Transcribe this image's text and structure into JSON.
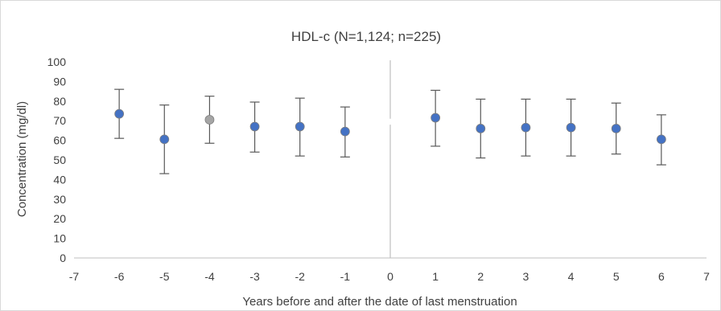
{
  "chart_data": {
    "type": "scatter",
    "title": "HDL-c (N=1,124; n=225)",
    "xlabel": "Years before and after the date of last menstruation",
    "ylabel": "Concentration (mg/dl)",
    "xlim": [
      -7,
      7
    ],
    "ylim": [
      0,
      100
    ],
    "xticks": [
      -7,
      -6,
      -5,
      -4,
      -3,
      -2,
      -1,
      0,
      1,
      2,
      3,
      4,
      5,
      6,
      7
    ],
    "yticks": [
      0,
      10,
      20,
      30,
      40,
      50,
      60,
      70,
      80,
      90,
      100
    ],
    "grid": false,
    "legend": "none",
    "reference_line": {
      "x": 0,
      "color": "#bfbfbf"
    },
    "marker_color": "#4472c4",
    "highlight_color": "#a5a5a5",
    "errorbar_color": "#595959",
    "points": [
      {
        "x": -6,
        "y": 73.5,
        "lower": 61,
        "upper": 86
      },
      {
        "x": -5,
        "y": 60.5,
        "lower": 43,
        "upper": 78
      },
      {
        "x": -4,
        "y": 70.5,
        "lower": 58.5,
        "upper": 82.5,
        "highlight": true
      },
      {
        "x": -3,
        "y": 67,
        "lower": 54,
        "upper": 79.5
      },
      {
        "x": -2,
        "y": 67,
        "lower": 52,
        "upper": 81.5
      },
      {
        "x": -1,
        "y": 64.5,
        "lower": 51.5,
        "upper": 77
      },
      {
        "x": 1,
        "y": 71.5,
        "lower": 57,
        "upper": 85.5
      },
      {
        "x": 2,
        "y": 66,
        "lower": 51,
        "upper": 81
      },
      {
        "x": 3,
        "y": 66.5,
        "lower": 52,
        "upper": 81
      },
      {
        "x": 4,
        "y": 66.5,
        "lower": 52,
        "upper": 81
      },
      {
        "x": 5,
        "y": 66,
        "lower": 53,
        "upper": 79
      },
      {
        "x": 6,
        "y": 60.5,
        "lower": 47.5,
        "upper": 73
      }
    ]
  }
}
